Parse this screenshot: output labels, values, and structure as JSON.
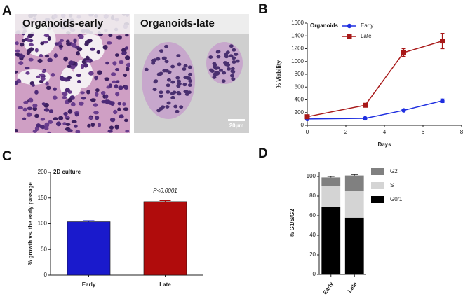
{
  "panel_labels": [
    "A",
    "B",
    "C",
    "D"
  ],
  "images": [
    {
      "label": "Organoids-early"
    },
    {
      "label": "Organoids-late",
      "scale_bar": "20µm"
    }
  ],
  "chart_data": [
    {
      "type": "line",
      "title": "Organoids",
      "x_label": "Days",
      "y_label": "% Viability",
      "x": [
        0,
        3,
        5,
        7
      ],
      "xlim": [
        0,
        8
      ],
      "xticks": [
        0,
        2,
        4,
        6,
        8
      ],
      "ylim": [
        0,
        1600
      ],
      "yticks": [
        0,
        200,
        400,
        600,
        800,
        1000,
        1200,
        1400,
        1600
      ],
      "series": [
        {
          "name": "Early",
          "color": "#1f2fe0",
          "marker": "circle",
          "values": [
            100,
            110,
            235,
            385
          ],
          "errors": [
            5,
            8,
            12,
            28
          ]
        },
        {
          "name": "Late",
          "color": "#a81818",
          "marker": "square",
          "values": [
            135,
            315,
            1140,
            1320
          ],
          "errors": [
            8,
            15,
            60,
            120
          ]
        }
      ]
    },
    {
      "type": "bar",
      "title": "2D culture",
      "annotation": "P<0.0001",
      "y_label": "% growth vs. the early passage",
      "categories": [
        "Early",
        "Late"
      ],
      "values": [
        104,
        143
      ],
      "errors": [
        2,
        2
      ],
      "colors": [
        "#1a1acc",
        "#b00c0c"
      ],
      "ylim": [
        0,
        200
      ],
      "yticks": [
        0,
        50,
        100,
        150,
        200
      ]
    },
    {
      "type": "bar",
      "stacked": true,
      "y_label": "% G1/S/G2",
      "categories": [
        "Early",
        "Late"
      ],
      "ylim": [
        0,
        105
      ],
      "yticks": [
        0,
        20,
        40,
        60,
        80,
        100
      ],
      "series": [
        {
          "name": "G0/1",
          "color": "#000000",
          "values": [
            69,
            58
          ]
        },
        {
          "name": "S",
          "color": "#d4d4d4",
          "values": [
            21,
            27
          ]
        },
        {
          "name": "G2",
          "color": "#808080",
          "values": [
            9,
            16
          ],
          "errors": [
            1,
            1
          ]
        }
      ]
    }
  ]
}
